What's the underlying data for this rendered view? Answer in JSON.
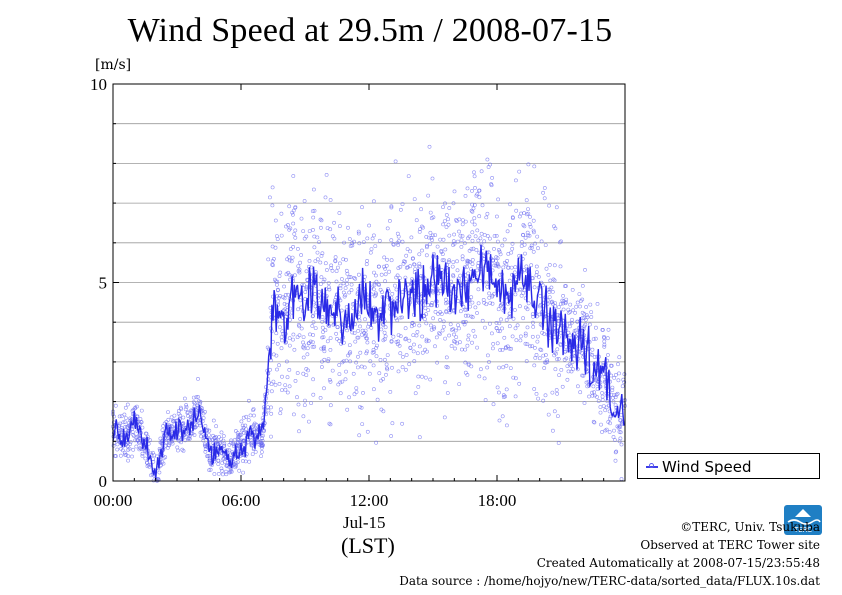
{
  "header": {
    "title": "Wind Speed at 29.5m / 2008-07-15",
    "unit": "[m/s]"
  },
  "axis": {
    "date_label": "Jul-15",
    "timezone_label": "(LST)"
  },
  "legend": {
    "label": "Wind Speed"
  },
  "footer": {
    "copyright": "©TERC, Univ. Tsukuba",
    "observed": "Observed at TERC Tower site",
    "created": "Created Automatically at 2008-07-15/23:55:48",
    "source": "Data source : /home/hojyo/new/TERC-data/sorted_data/FLUX.10s.dat"
  },
  "logo": {
    "text": "TERC"
  },
  "colors": {
    "series": "#2a2ae6",
    "points": "#6b6bf0",
    "grid": "#9a9a9a"
  },
  "chart_data": {
    "type": "line",
    "title": "Wind Speed at 29.5m / 2008-07-15",
    "ylabel": "[m/s]",
    "xlabel": "(LST)",
    "ylim": [
      0,
      10
    ],
    "yticks": [
      0,
      5,
      10
    ],
    "yticklabels": [
      "0",
      "5",
      "10"
    ],
    "xlim_hours": [
      0,
      24
    ],
    "xticks_hours": [
      0,
      6,
      12,
      18
    ],
    "xticklabels": [
      "00:00",
      "06:00",
      "12:00",
      "18:00"
    ],
    "grid": "horizontal, every 1 m/s",
    "legend_position": "right",
    "series": [
      {
        "name": "Wind Speed",
        "marker": "open circles (10 s samples) with smoothed line",
        "x_hours": [
          0,
          0.5,
          1,
          1.5,
          2,
          2.5,
          3,
          3.5,
          4,
          4.5,
          5,
          5.5,
          6,
          6.5,
          7,
          7.5,
          8,
          8.5,
          9,
          9.5,
          10,
          10.5,
          11,
          11.5,
          12,
          12.5,
          13,
          13.5,
          14,
          14.5,
          15,
          15.5,
          16,
          16.5,
          17,
          17.5,
          18,
          18.5,
          19,
          19.5,
          20,
          20.5,
          21,
          21.5,
          22,
          22.5,
          23,
          23.5,
          24
        ],
        "values": [
          1.3,
          1.0,
          1.5,
          0.9,
          0.3,
          1.2,
          1.3,
          1.4,
          1.8,
          0.8,
          0.7,
          0.6,
          0.9,
          1.2,
          1.1,
          4.3,
          4.0,
          4.8,
          4.3,
          4.9,
          4.2,
          4.4,
          3.8,
          4.6,
          4.3,
          4.1,
          4.6,
          4.5,
          4.8,
          4.6,
          5.1,
          5.0,
          4.6,
          4.9,
          5.4,
          5.5,
          4.8,
          4.5,
          5.1,
          4.9,
          4.6,
          4.0,
          3.9,
          3.4,
          3.8,
          2.8,
          2.7,
          1.7,
          1.8
        ]
      }
    ]
  }
}
